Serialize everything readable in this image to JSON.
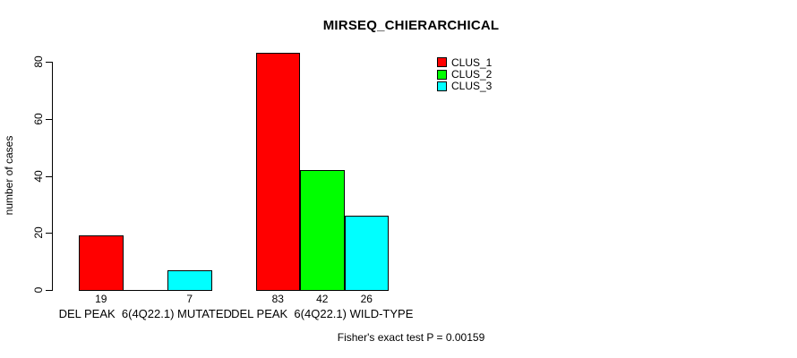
{
  "title": "MIRSEQ_CHIERARCHICAL",
  "footer": "Fisher's exact test P = 0.00159",
  "chart_data": {
    "type": "bar",
    "title": "MIRSEQ_CHIERARCHICAL",
    "xlabel": "",
    "ylabel": "number of cases",
    "categories": [
      "DEL PEAK  6(4Q22.1) MUTATED",
      "DEL PEAK  6(4Q22.1) WILD-TYPE"
    ],
    "series": [
      {
        "name": "CLUS_1",
        "color": "#FF0000",
        "values": [
          19,
          83
        ]
      },
      {
        "name": "CLUS_2",
        "color": "#00FF00",
        "values": [
          0,
          42
        ]
      },
      {
        "name": "CLUS_3",
        "color": "#00FFFF",
        "values": [
          7,
          26
        ]
      }
    ],
    "bar_value_labels": [
      [
        "19",
        "",
        "7"
      ],
      [
        "83",
        "42",
        "26"
      ]
    ],
    "yticks": [
      0,
      20,
      40,
      60,
      80
    ],
    "ylim": [
      0,
      80
    ],
    "grid": false,
    "legend_position": "top-right",
    "annotation": "Fisher's exact test P = 0.00159"
  }
}
